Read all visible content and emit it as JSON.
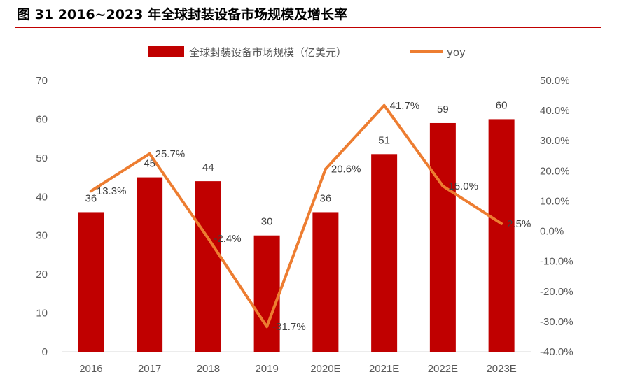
{
  "title": "图 31 2016~2023 年全球封装设备市场规模及增长率",
  "colors": {
    "bar": "#c00000",
    "line": "#ed7d31",
    "rule": "#c00000"
  },
  "chart_data": {
    "type": "bar",
    "categories": [
      "2016",
      "2017",
      "2018",
      "2019",
      "2020E",
      "2021E",
      "2022E",
      "2023E"
    ],
    "series": [
      {
        "name": "全球封装设备市场规模（亿美元）",
        "type": "bar",
        "axis": "left",
        "values": [
          36,
          45,
          44,
          30,
          36,
          51,
          59,
          60
        ],
        "labels": [
          "36",
          "45",
          "44",
          "30",
          "36",
          "51",
          "59",
          "60"
        ]
      },
      {
        "name": "yoy",
        "type": "line",
        "axis": "right",
        "values": [
          13.3,
          25.7,
          -2.4,
          -31.7,
          20.6,
          41.7,
          15.0,
          2.5
        ],
        "labels": [
          "13.3%",
          "25.7%",
          "-2.4%",
          "-31.7%",
          "20.6%",
          "41.7%",
          "15.0%",
          "2.5%"
        ]
      }
    ],
    "y_left": {
      "ylim": [
        0,
        70
      ],
      "ticks": [
        "0",
        "10",
        "20",
        "30",
        "40",
        "50",
        "60",
        "70"
      ]
    },
    "y_right": {
      "ylim": [
        -40,
        50
      ],
      "ticks": [
        "-40.0%",
        "-30.0%",
        "-20.0%",
        "-10.0%",
        "0.0%",
        "10.0%",
        "20.0%",
        "30.0%",
        "40.0%",
        "50.0%"
      ]
    },
    "grid": false,
    "legend": "top"
  }
}
